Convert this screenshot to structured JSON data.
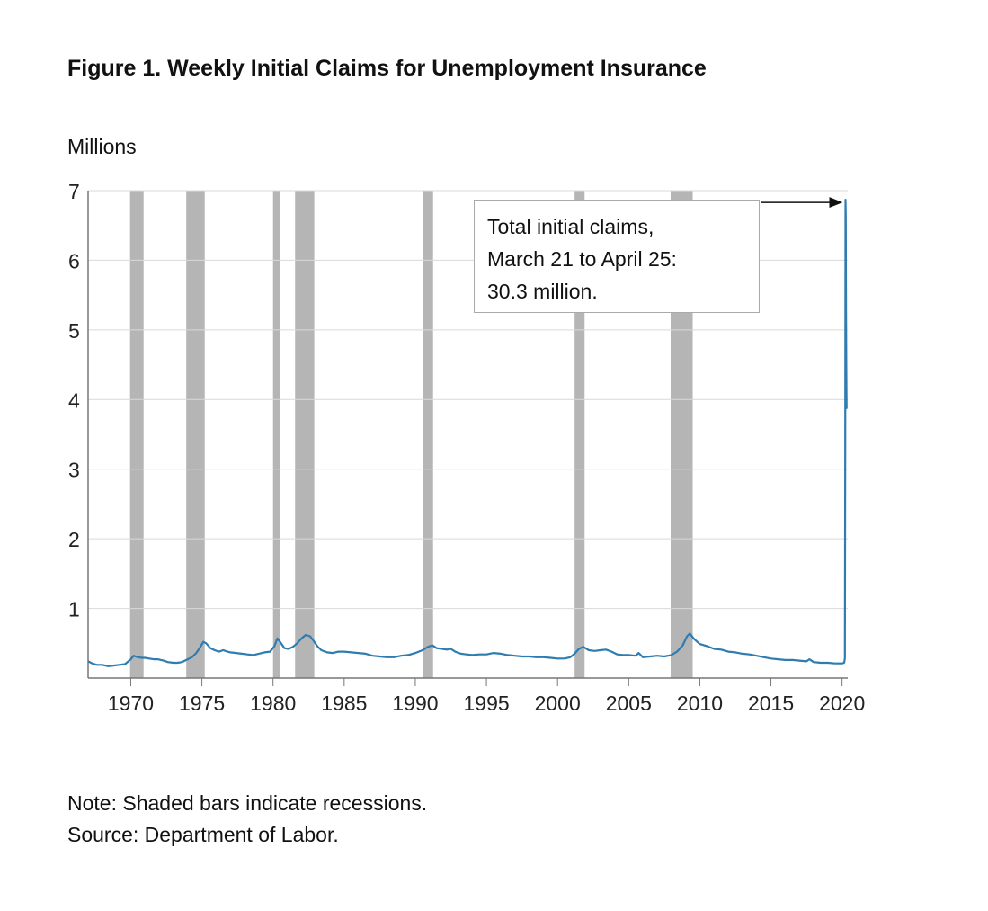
{
  "figure": {
    "title": "Figure 1. Weekly Initial Claims for Unemployment Insurance",
    "unit_label": "Millions",
    "note": "Note: Shaded bars indicate recessions.",
    "source": "Source: Department of Labor.",
    "callout_lines": [
      "Total initial claims,",
      "March 21 to April 25:",
      "30.3 million."
    ]
  },
  "chart_data": {
    "type": "line",
    "title": "Figure 1. Weekly Initial Claims for Unemployment Insurance",
    "xlabel": "",
    "ylabel": "Millions",
    "xlim": [
      1967,
      2020.4
    ],
    "ylim": [
      0,
      7
    ],
    "x_ticks": [
      1970,
      1975,
      1980,
      1985,
      1990,
      1995,
      2000,
      2005,
      2010,
      2015,
      2020
    ],
    "x_tick_labels": [
      "1970",
      "1975",
      "1980",
      "1985",
      "1990",
      "1995",
      "2000",
      "2005",
      "2010",
      "2015",
      "2020"
    ],
    "y_ticks": [
      1,
      2,
      3,
      4,
      5,
      6,
      7
    ],
    "y_tick_labels": [
      "1",
      "2",
      "3",
      "4",
      "5",
      "6",
      "7"
    ],
    "grid": true,
    "legend": "none",
    "colors": {
      "line": "#2f7cb0",
      "recession": "#b5b5b5",
      "grid": "#d9d9d9",
      "axis": "#777777"
    },
    "recessions": [
      [
        1969.95,
        1970.9
      ],
      [
        1973.9,
        1975.2
      ],
      [
        1980.0,
        1980.5
      ],
      [
        1981.55,
        1982.9
      ],
      [
        1990.55,
        1991.25
      ],
      [
        2001.2,
        2001.9
      ],
      [
        2007.95,
        2009.5
      ]
    ],
    "series": [
      {
        "x": [
          1967.0,
          1967.3,
          1967.6,
          1968.0,
          1968.4,
          1968.8,
          1969.2,
          1969.6,
          1970.0,
          1970.2,
          1970.5,
          1970.8,
          1971.0,
          1971.3,
          1971.6,
          1971.9,
          1972.3,
          1972.6,
          1973.0,
          1973.3,
          1973.6,
          1973.9,
          1974.3,
          1974.6,
          1974.9,
          1975.1,
          1975.3,
          1975.6,
          1975.9,
          1976.2,
          1976.5,
          1976.8,
          1977.0,
          1977.4,
          1977.8,
          1978.2,
          1978.6,
          1979.0,
          1979.4,
          1979.8,
          1980.1,
          1980.3,
          1980.5,
          1980.8,
          1981.1,
          1981.4,
          1981.7,
          1982.0,
          1982.3,
          1982.6,
          1982.8,
          1983.1,
          1983.4,
          1983.8,
          1984.2,
          1984.6,
          1985.0,
          1985.5,
          1986.0,
          1986.5,
          1987.0,
          1987.5,
          1988.0,
          1988.5,
          1989.0,
          1989.5,
          1990.0,
          1990.5,
          1990.9,
          1991.2,
          1991.5,
          1991.9,
          1992.2,
          1992.5,
          1992.8,
          1993.2,
          1993.6,
          1994.0,
          1994.5,
          1995.0,
          1995.5,
          1996.0,
          1996.5,
          1997.0,
          1997.5,
          1998.0,
          1998.5,
          1999.0,
          1999.5,
          2000.0,
          2000.5,
          2000.9,
          2001.2,
          2001.5,
          2001.8,
          2002.2,
          2002.6,
          2003.0,
          2003.4,
          2003.8,
          2004.2,
          2004.6,
          2005.0,
          2005.5,
          2005.7,
          2006.0,
          2006.5,
          2007.0,
          2007.5,
          2008.0,
          2008.4,
          2008.8,
          2009.1,
          2009.3,
          2009.6,
          2010.0,
          2010.5,
          2011.0,
          2011.5,
          2012.0,
          2012.5,
          2013.0,
          2013.5,
          2014.0,
          2014.5,
          2015.0,
          2015.5,
          2016.0,
          2016.5,
          2017.0,
          2017.5,
          2017.7,
          2018.0,
          2018.5,
          2019.0,
          2019.5,
          2020.0,
          2020.15,
          2020.2,
          2020.22,
          2020.24,
          2020.26,
          2020.28,
          2020.3,
          2020.32
        ],
        "y": [
          0.24,
          0.21,
          0.19,
          0.19,
          0.17,
          0.18,
          0.19,
          0.2,
          0.27,
          0.32,
          0.3,
          0.29,
          0.29,
          0.28,
          0.27,
          0.27,
          0.25,
          0.23,
          0.22,
          0.22,
          0.23,
          0.26,
          0.3,
          0.36,
          0.45,
          0.52,
          0.5,
          0.43,
          0.4,
          0.38,
          0.4,
          0.38,
          0.37,
          0.36,
          0.35,
          0.34,
          0.33,
          0.35,
          0.37,
          0.38,
          0.46,
          0.57,
          0.52,
          0.43,
          0.42,
          0.45,
          0.5,
          0.57,
          0.62,
          0.6,
          0.55,
          0.46,
          0.4,
          0.37,
          0.36,
          0.38,
          0.38,
          0.37,
          0.36,
          0.35,
          0.32,
          0.31,
          0.3,
          0.3,
          0.32,
          0.33,
          0.36,
          0.4,
          0.45,
          0.47,
          0.43,
          0.42,
          0.41,
          0.42,
          0.38,
          0.35,
          0.34,
          0.33,
          0.34,
          0.34,
          0.36,
          0.35,
          0.33,
          0.32,
          0.31,
          0.31,
          0.3,
          0.3,
          0.29,
          0.28,
          0.28,
          0.3,
          0.35,
          0.42,
          0.45,
          0.4,
          0.39,
          0.4,
          0.41,
          0.38,
          0.34,
          0.33,
          0.33,
          0.32,
          0.36,
          0.3,
          0.31,
          0.32,
          0.31,
          0.33,
          0.38,
          0.47,
          0.6,
          0.64,
          0.56,
          0.49,
          0.46,
          0.42,
          0.41,
          0.38,
          0.37,
          0.35,
          0.34,
          0.32,
          0.3,
          0.28,
          0.27,
          0.26,
          0.26,
          0.25,
          0.24,
          0.27,
          0.23,
          0.22,
          0.22,
          0.21,
          0.21,
          0.22,
          0.28,
          3.31,
          6.87,
          6.62,
          5.24,
          4.44,
          3.87
        ]
      }
    ],
    "annotations": [
      {
        "text": "Total initial claims, March 21 to April 25: 30.3 million.",
        "arrow_target": [
          2020.2,
          6.87
        ]
      }
    ]
  }
}
